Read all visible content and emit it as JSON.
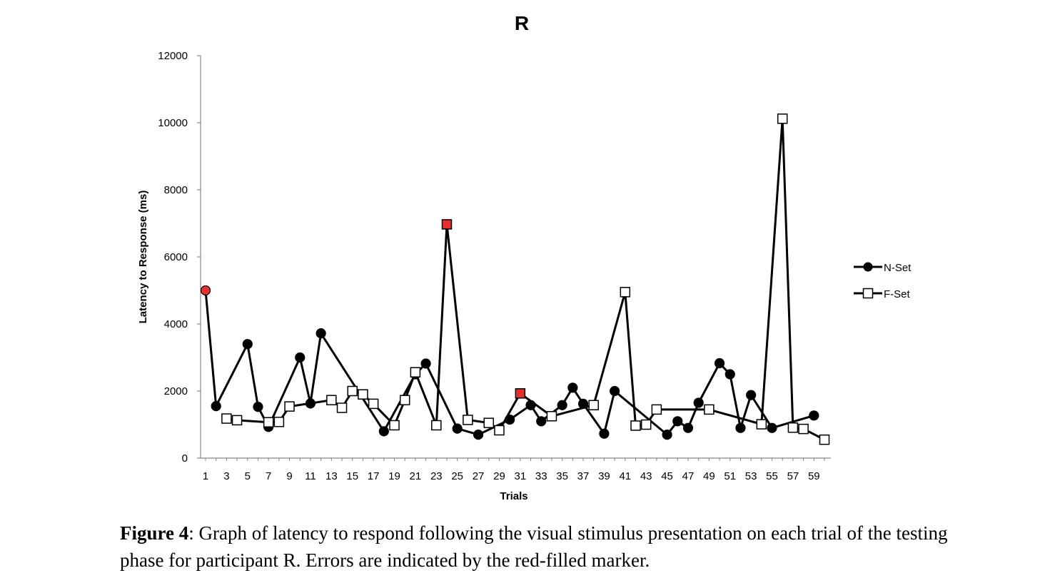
{
  "chart_data": {
    "type": "line",
    "title": "R",
    "xlabel": "Trials",
    "ylabel": "Latency to Response (ms)",
    "ylim": [
      0,
      12000
    ],
    "yticks": [
      0,
      2000,
      4000,
      6000,
      8000,
      10000,
      12000
    ],
    "xlim": [
      1,
      60
    ],
    "xticks": [
      1,
      3,
      5,
      7,
      9,
      11,
      13,
      15,
      17,
      19,
      21,
      23,
      25,
      27,
      29,
      31,
      33,
      35,
      37,
      39,
      41,
      43,
      45,
      47,
      49,
      51,
      53,
      55,
      57,
      59
    ],
    "grid": false,
    "legend_position": "right",
    "error_color": "#e8302f",
    "series": [
      {
        "name": "N-Set",
        "marker": "circle",
        "points": [
          {
            "x": 1,
            "y": 5000,
            "error": true
          },
          {
            "x": 2,
            "y": 1550
          },
          {
            "x": 5,
            "y": 3400
          },
          {
            "x": 6,
            "y": 1530
          },
          {
            "x": 7,
            "y": 930
          },
          {
            "x": 10,
            "y": 3000
          },
          {
            "x": 11,
            "y": 1630
          },
          {
            "x": 12,
            "y": 3720
          },
          {
            "x": 18,
            "y": 800
          },
          {
            "x": 21,
            "y": 2500
          },
          {
            "x": 22,
            "y": 2820
          },
          {
            "x": 25,
            "y": 880
          },
          {
            "x": 27,
            "y": 700
          },
          {
            "x": 30,
            "y": 1150
          },
          {
            "x": 32,
            "y": 1580
          },
          {
            "x": 33,
            "y": 1100
          },
          {
            "x": 35,
            "y": 1580
          },
          {
            "x": 36,
            "y": 2100
          },
          {
            "x": 37,
            "y": 1620
          },
          {
            "x": 39,
            "y": 730
          },
          {
            "x": 40,
            "y": 2000
          },
          {
            "x": 45,
            "y": 700
          },
          {
            "x": 46,
            "y": 1100
          },
          {
            "x": 47,
            "y": 900
          },
          {
            "x": 48,
            "y": 1650
          },
          {
            "x": 50,
            "y": 2830
          },
          {
            "x": 51,
            "y": 2500
          },
          {
            "x": 52,
            "y": 900
          },
          {
            "x": 53,
            "y": 1880
          },
          {
            "x": 55,
            "y": 900
          },
          {
            "x": 59,
            "y": 1270
          }
        ]
      },
      {
        "name": "F-Set",
        "marker": "square",
        "points": [
          {
            "x": 3,
            "y": 1180
          },
          {
            "x": 4,
            "y": 1130
          },
          {
            "x": 7,
            "y": 1070
          },
          {
            "x": 8,
            "y": 1080
          },
          {
            "x": 9,
            "y": 1540
          },
          {
            "x": 13,
            "y": 1730
          },
          {
            "x": 14,
            "y": 1500
          },
          {
            "x": 15,
            "y": 2000
          },
          {
            "x": 16,
            "y": 1900
          },
          {
            "x": 17,
            "y": 1620
          },
          {
            "x": 19,
            "y": 980
          },
          {
            "x": 20,
            "y": 1730
          },
          {
            "x": 21,
            "y": 2560
          },
          {
            "x": 23,
            "y": 980
          },
          {
            "x": 24,
            "y": 6970,
            "error": true
          },
          {
            "x": 26,
            "y": 1140
          },
          {
            "x": 28,
            "y": 1050
          },
          {
            "x": 29,
            "y": 830
          },
          {
            "x": 31,
            "y": 1930,
            "error": true
          },
          {
            "x": 34,
            "y": 1250
          },
          {
            "x": 38,
            "y": 1580
          },
          {
            "x": 41,
            "y": 4950
          },
          {
            "x": 42,
            "y": 970
          },
          {
            "x": 43,
            "y": 1000
          },
          {
            "x": 44,
            "y": 1450
          },
          {
            "x": 49,
            "y": 1450
          },
          {
            "x": 54,
            "y": 1010
          },
          {
            "x": 56,
            "y": 10120
          },
          {
            "x": 57,
            "y": 910
          },
          {
            "x": 58,
            "y": 870
          },
          {
            "x": 60,
            "y": 550
          }
        ]
      }
    ]
  },
  "caption": {
    "label": "Figure 4",
    "text": ": Graph of latency to respond following the visual stimulus presentation on each trial of the testing phase for participant R. Errors are indicated by the red-filled marker."
  }
}
